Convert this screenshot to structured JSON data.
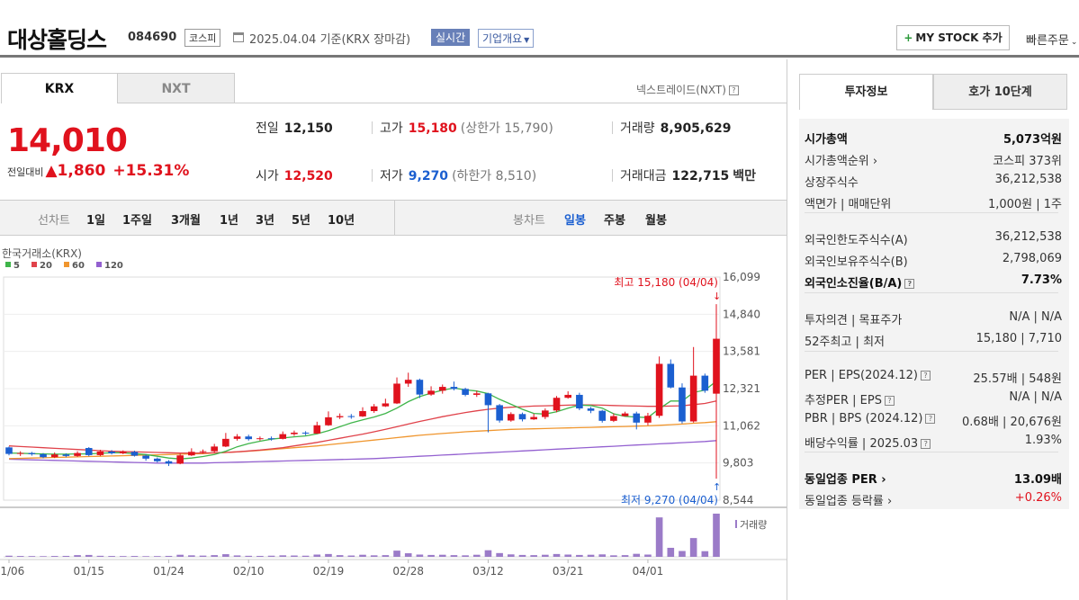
{
  "header": {
    "name": "대상홀딩스",
    "code": "084690",
    "market": "코스피",
    "date": "2025.04.04 기준(KRX 장마감)",
    "live": "실시간",
    "company_info": "기업개요",
    "my_stock": "MY STOCK 추가",
    "quick_order": "빠른주문"
  },
  "tabs": {
    "krx": "KRX",
    "nxt": "NXT",
    "nxt_link": "넥스트레이드(NXT)"
  },
  "quote": {
    "price": "14,010",
    "change_label": "전일대비",
    "change": "▲1,860",
    "change_pct": "+15.31%",
    "prev_label": "전일",
    "prev": "12,150",
    "high_label": "고가",
    "high": "15,180",
    "upper_limit": "(상한가 15,790)",
    "volume_label": "거래량",
    "volume": "8,905,629",
    "open_label": "시가",
    "open": "12,520",
    "low_label": "저가",
    "low": "9,270",
    "lower_limit": "(하한가 8,510)",
    "amount_label": "거래대금",
    "amount": "122,715",
    "amount_unit": "백만"
  },
  "periods": {
    "line_label": "선차트",
    "line_items": [
      "1일",
      "1주일",
      "3개월",
      "1년",
      "3년",
      "5년",
      "10년"
    ],
    "candle_label": "봉차트",
    "candle_items": [
      "일봉",
      "주봉",
      "월봉"
    ]
  },
  "chart_data": {
    "type": "candlestick",
    "source": "한국거래소(KRX)",
    "ma_legend": [
      {
        "name": "5",
        "color": "#3fb54a"
      },
      {
        "name": "20",
        "color": "#e0424a"
      },
      {
        "name": "60",
        "color": "#f0962e"
      },
      {
        "name": "120",
        "color": "#9360d0"
      }
    ],
    "y_ticks": [
      "16,099",
      "14,840",
      "13,581",
      "12,321",
      "11,062",
      "9,803",
      "8,544"
    ],
    "ylim": [
      8544,
      16099
    ],
    "x_ticks": [
      "01/06",
      "01/15",
      "01/24",
      "02/10",
      "02/19",
      "02/28",
      "03/12",
      "03/21",
      "04/01"
    ],
    "x_tick_index": [
      0,
      7,
      14,
      21,
      28,
      35,
      42,
      49,
      56
    ],
    "max_label": "최고 15,180 (04/04)",
    "min_label": "최저 9,270 (04/04)",
    "volume_label": "거래량",
    "candles": [
      [
        10330,
        10110,
        10360,
        10060
      ],
      [
        10110,
        10140,
        10200,
        10040
      ],
      [
        10140,
        10100,
        10180,
        10050
      ],
      [
        10100,
        10000,
        10140,
        9960
      ],
      [
        10000,
        10090,
        10160,
        9970
      ],
      [
        10090,
        10040,
        10130,
        10000
      ],
      [
        10040,
        10140,
        10200,
        10010
      ],
      [
        10310,
        10070,
        10340,
        10030
      ],
      [
        10070,
        10190,
        10250,
        10040
      ],
      [
        10190,
        10130,
        10240,
        10090
      ],
      [
        10130,
        10180,
        10230,
        10100
      ],
      [
        10180,
        10050,
        10220,
        10020
      ],
      [
        10050,
        9950,
        10090,
        9880
      ],
      [
        9950,
        9860,
        9990,
        9820
      ],
      [
        9860,
        9780,
        9900,
        9700
      ],
      [
        9780,
        10060,
        10120,
        9760
      ],
      [
        10060,
        10180,
        10300,
        10040
      ],
      [
        10180,
        10200,
        10260,
        10120
      ],
      [
        10200,
        10360,
        10450,
        10160
      ],
      [
        10360,
        10620,
        10820,
        10340
      ],
      [
        10620,
        10700,
        10780,
        10560
      ],
      [
        10700,
        10610,
        10760,
        10560
      ],
      [
        10610,
        10640,
        10700,
        10560
      ],
      [
        10640,
        10620,
        10700,
        10560
      ],
      [
        10620,
        10780,
        10870,
        10600
      ],
      [
        10780,
        10830,
        10900,
        10720
      ],
      [
        10830,
        10800,
        10880,
        10740
      ],
      [
        10800,
        11080,
        11200,
        10790
      ],
      [
        11080,
        11350,
        11550,
        11060
      ],
      [
        11350,
        11390,
        11480,
        11290
      ],
      [
        11390,
        11380,
        11460,
        11300
      ],
      [
        11380,
        11560,
        11690,
        11360
      ],
      [
        11560,
        11720,
        11800,
        11500
      ],
      [
        11720,
        11820,
        11980,
        11700
      ],
      [
        11820,
        12490,
        12700,
        11800
      ],
      [
        12490,
        12620,
        12860,
        12380
      ],
      [
        12620,
        12120,
        12660,
        12000
      ],
      [
        12120,
        12250,
        12400,
        12080
      ],
      [
        12250,
        12380,
        12460,
        12150
      ],
      [
        12380,
        12310,
        12560,
        12260
      ],
      [
        12310,
        12110,
        12350,
        12060
      ],
      [
        12110,
        12160,
        12250,
        12040
      ],
      [
        12160,
        11760,
        12180,
        10840
      ],
      [
        11760,
        11240,
        11800,
        11170
      ],
      [
        11240,
        11460,
        11520,
        11200
      ],
      [
        11460,
        11280,
        11510,
        11210
      ],
      [
        11280,
        11360,
        11470,
        11260
      ],
      [
        11360,
        11580,
        11650,
        11290
      ],
      [
        11580,
        12010,
        12070,
        11520
      ],
      [
        12010,
        12110,
        12230,
        11980
      ],
      [
        12110,
        11650,
        12180,
        11590
      ],
      [
        11650,
        11570,
        11700,
        11490
      ],
      [
        11570,
        11230,
        11600,
        11170
      ],
      [
        11230,
        11390,
        11480,
        11190
      ],
      [
        11390,
        11480,
        11540,
        11380
      ],
      [
        11480,
        11170,
        11540,
        10940
      ],
      [
        11170,
        11400,
        11500,
        11080
      ],
      [
        11400,
        13160,
        13410,
        11330
      ],
      [
        13160,
        12360,
        13310,
        12330
      ],
      [
        12360,
        11210,
        12500,
        11140
      ],
      [
        11210,
        12760,
        13730,
        11170
      ],
      [
        12760,
        12250,
        12830,
        12180
      ],
      [
        12150,
        14010,
        15180,
        9270
      ]
    ],
    "ma5": [
      10140,
      10130,
      10120,
      10110,
      10100,
      10100,
      10110,
      10110,
      10130,
      10150,
      10150,
      10120,
      10090,
      10030,
      9970,
      9940,
      9970,
      10020,
      10090,
      10200,
      10350,
      10460,
      10540,
      10610,
      10650,
      10690,
      10720,
      10790,
      10900,
      11030,
      11160,
      11260,
      11360,
      11480,
      11660,
      11880,
      12050,
      12170,
      12270,
      12340,
      12280,
      12240,
      12150,
      11960,
      11790,
      11620,
      11480,
      11460,
      11540,
      11660,
      11760,
      11750,
      11660,
      11470,
      11380,
      11360,
      11340,
      11640,
      11900,
      11900,
      12190,
      12270,
      12570
    ],
    "ma20": [
      10380,
      10360,
      10340,
      10320,
      10300,
      10280,
      10260,
      10240,
      10220,
      10200,
      10190,
      10180,
      10170,
      10160,
      10150,
      10140,
      10140,
      10140,
      10150,
      10160,
      10180,
      10210,
      10240,
      10280,
      10320,
      10380,
      10440,
      10500,
      10570,
      10640,
      10710,
      10780,
      10860,
      10940,
      11030,
      11120,
      11210,
      11290,
      11370,
      11440,
      11510,
      11570,
      11620,
      11660,
      11690,
      11710,
      11730,
      11740,
      11750,
      11760,
      11770,
      11770,
      11760,
      11750,
      11740,
      11730,
      11720,
      11720,
      11730,
      11740,
      11780,
      11820,
      11900
    ],
    "ma60": [
      9950,
      9960,
      9970,
      9980,
      9990,
      10000,
      10010,
      10020,
      10030,
      10040,
      10050,
      10060,
      10070,
      10080,
      10090,
      10100,
      10110,
      10120,
      10140,
      10160,
      10180,
      10200,
      10230,
      10260,
      10290,
      10320,
      10350,
      10380,
      10420,
      10460,
      10500,
      10540,
      10580,
      10620,
      10660,
      10700,
      10740,
      10770,
      10800,
      10830,
      10860,
      10880,
      10900,
      10920,
      10940,
      10950,
      10960,
      10970,
      10980,
      10990,
      11000,
      11010,
      11020,
      11030,
      11040,
      11050,
      11060,
      11080,
      11100,
      11120,
      11150,
      11170,
      11200
    ],
    "ma120": [
      9930,
      9920,
      9910,
      9900,
      9890,
      9880,
      9870,
      9860,
      9850,
      9840,
      9830,
      9820,
      9810,
      9800,
      9800,
      9800,
      9800,
      9800,
      9810,
      9820,
      9830,
      9840,
      9850,
      9860,
      9870,
      9880,
      9890,
      9900,
      9910,
      9920,
      9930,
      9940,
      9950,
      9970,
      9990,
      10010,
      10030,
      10050,
      10070,
      10090,
      10110,
      10130,
      10150,
      10170,
      10190,
      10210,
      10230,
      10250,
      10270,
      10290,
      10310,
      10330,
      10350,
      10370,
      10390,
      10410,
      10430,
      10450,
      10470,
      10490,
      10510,
      10530,
      10560
    ],
    "volumes": [
      12,
      9,
      8,
      7,
      9,
      10,
      18,
      20,
      11,
      9,
      8,
      9,
      7,
      8,
      10,
      22,
      16,
      13,
      18,
      28,
      15,
      11,
      10,
      12,
      16,
      14,
      12,
      24,
      30,
      18,
      14,
      22,
      16,
      18,
      66,
      38,
      24,
      20,
      22,
      18,
      16,
      22,
      70,
      40,
      26,
      20,
      18,
      22,
      30,
      24,
      20,
      22,
      26,
      16,
      18,
      32,
      24,
      420,
      96,
      62,
      200,
      60,
      460
    ]
  },
  "right_panel": {
    "tab1": "투자정보",
    "tab2": "호가 10단계",
    "rows": [
      {
        "k": "시가총액",
        "v": "5,073억원",
        "bold": true
      },
      {
        "k": "시가총액순위 ›",
        "v": "코스피 373위"
      },
      {
        "k": "상장주식수",
        "v": "36,212,538"
      },
      {
        "k": "액면가 | 매매단위",
        "v": "1,000원 | 1주"
      },
      {
        "k": "외국인한도주식수(A)",
        "v": "36,212,538"
      },
      {
        "k": "외국인보유주식수(B)",
        "v": "2,798,069"
      },
      {
        "k": "외국인소진율(B/A)",
        "v": "7.73%",
        "bold": true
      },
      {
        "k": "투자의견 | 목표주가",
        "v": "N/A | N/A"
      },
      {
        "k": "52주최고 | 최저",
        "v": "15,180 | 7,710"
      },
      {
        "k": "PER | EPS(2024.12)",
        "v": "25.57배 | 548원"
      },
      {
        "k": "추정PER | EPS",
        "v": "N/A | N/A"
      },
      {
        "k": "PBR | BPS (2024.12)",
        "v": "0.68배 | 20,676원"
      },
      {
        "k": "배당수익률 | 2025.03",
        "v": "1.93%"
      },
      {
        "k": "동일업종 PER ›",
        "v": "13.09배",
        "bold": true
      },
      {
        "k": "동일업종 등락률 ›",
        "v": "+0.26%",
        "red": true
      }
    ]
  }
}
